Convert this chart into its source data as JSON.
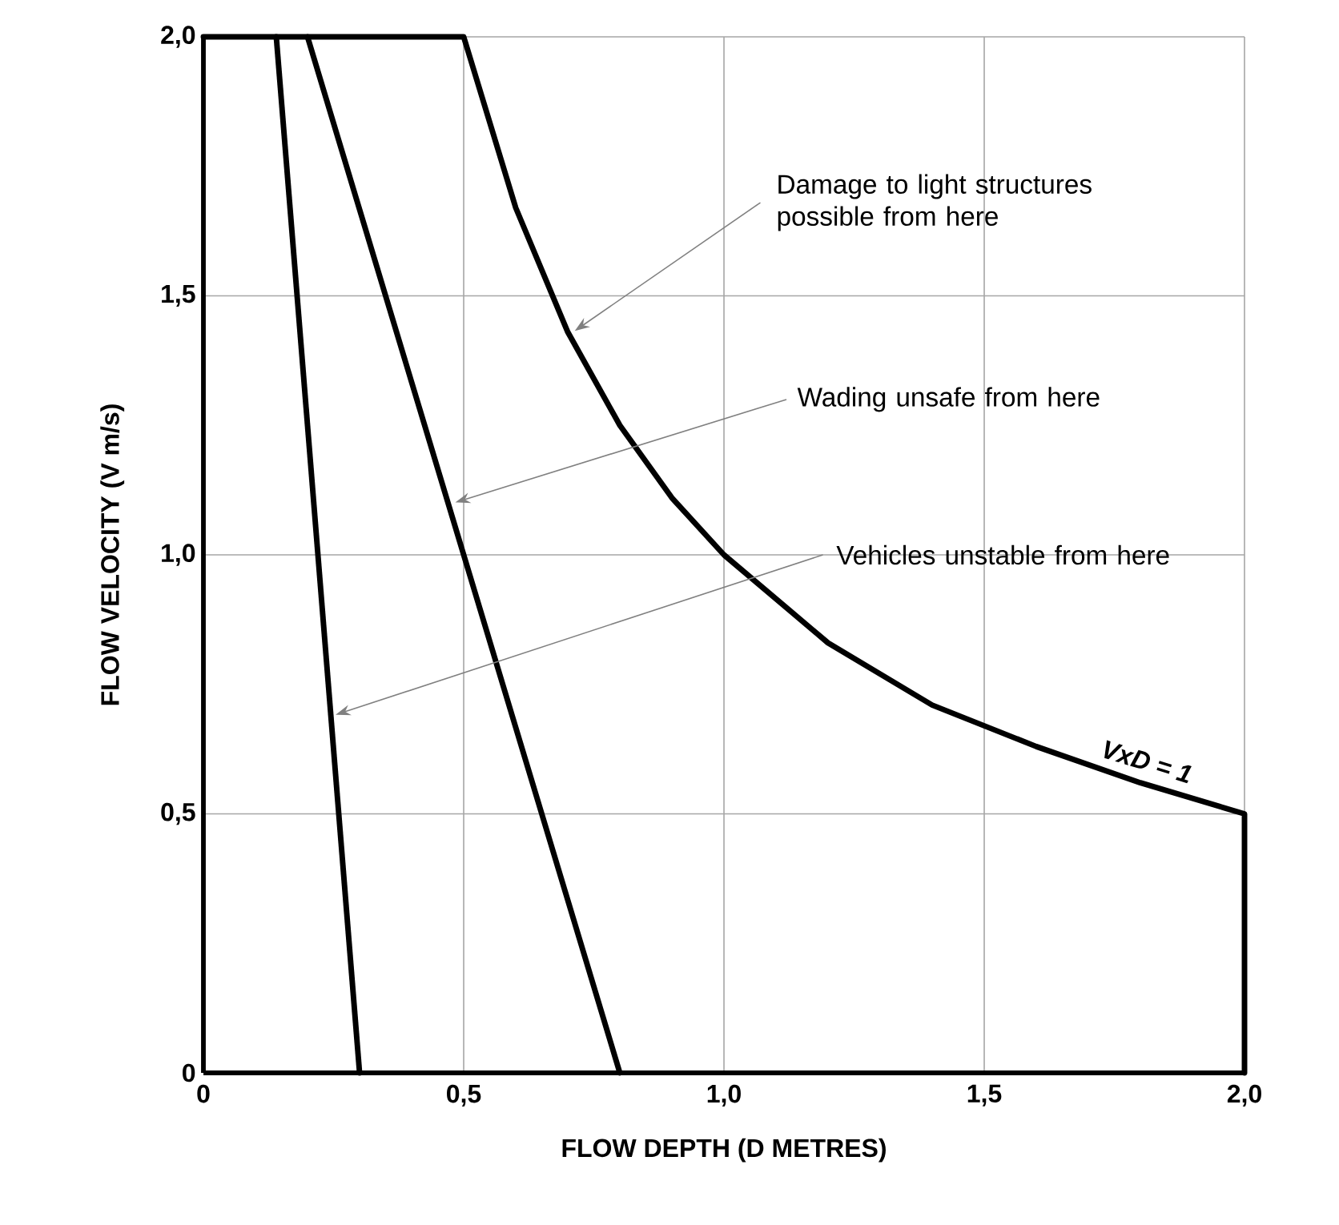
{
  "chart_data": {
    "type": "line",
    "xlabel": "FLOW DEPTH (D METRES)",
    "ylabel": "FLOW VELOCITY (V m/s)",
    "xlim": [
      0,
      2
    ],
    "ylim": [
      0,
      2
    ],
    "xticks": [
      0,
      {
        "value": 0.5,
        "label": "0,5"
      },
      {
        "value": 1.0,
        "label": "1,0"
      },
      {
        "value": 1.5,
        "label": "1,5"
      },
      {
        "value": 2.0,
        "label": "2,0"
      }
    ],
    "yticks": [
      0,
      {
        "value": 0.5,
        "label": "0,5"
      },
      {
        "value": 1.0,
        "label": "1,0"
      },
      {
        "value": 1.5,
        "label": "1,5"
      },
      {
        "value": 2.0,
        "label": "2,0"
      }
    ],
    "grid": true,
    "marker": "none",
    "line_style": "solid",
    "series": [
      {
        "color": "#000000",
        "x": [
          0,
          0.5,
          0.6,
          0.7,
          0.8,
          0.9,
          1.0,
          1.2,
          1.4,
          1.6,
          1.8,
          2.0,
          2.0
        ],
        "values": [
          2,
          2,
          1.67,
          1.43,
          1.25,
          1.11,
          1.0,
          0.83,
          0.71,
          0.63,
          0.56,
          0.5,
          0
        ]
      },
      {
        "color": "#000000",
        "x": [
          0.2,
          0.8
        ],
        "values": [
          2,
          0
        ]
      },
      {
        "color": "#000000",
        "x": [
          0.14,
          0.3
        ],
        "values": [
          2,
          0
        ]
      }
    ],
    "annotations": [
      {
        "text": "Damage to light structures possible from here",
        "x": 0.71,
        "y": 1.43
      },
      {
        "text": "Wading unsafe from here",
        "x": 0.48,
        "y": 1.1
      },
      {
        "text": "Vehicles unstable from here",
        "x": 0.25,
        "y": 0.69
      },
      {
        "text": "VxD = 1",
        "x": 1.8,
        "y": 0.56
      }
    ]
  }
}
